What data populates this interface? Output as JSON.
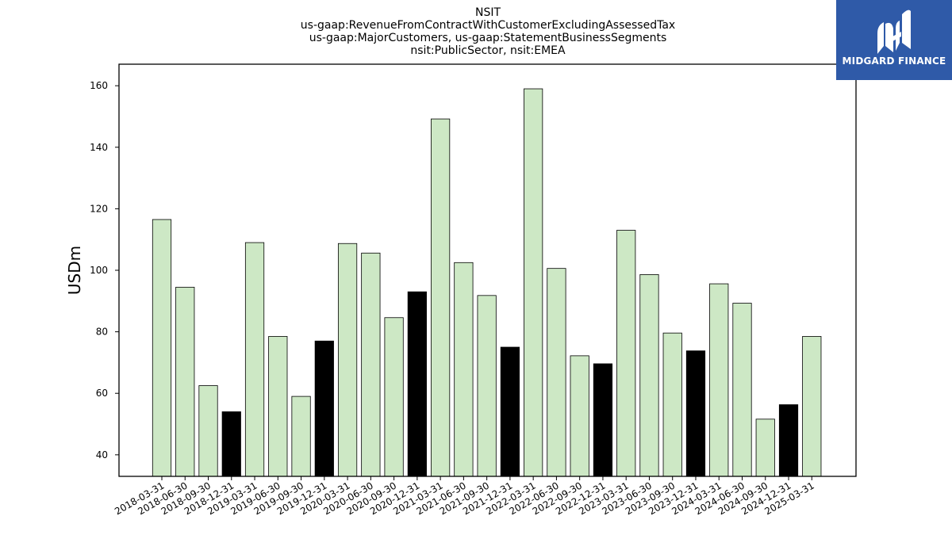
{
  "chart_data": {
    "type": "bar",
    "title_lines": [
      "NSIT",
      "us-gaap:RevenueFromContractWithCustomerExcludingAssessedTax",
      "us-gaap:MajorCustomers, us-gaap:StatementBusinessSegments",
      "nsit:PublicSector, nsit:EMEA"
    ],
    "xlabel": "",
    "ylabel": "USDm",
    "ylim": [
      33,
      167
    ],
    "yticks": [
      40,
      60,
      80,
      100,
      120,
      140,
      160
    ],
    "grid": false,
    "categories": [
      "2018-03-31",
      "2018-06-30",
      "2018-09-30",
      "2018-12-31",
      "2019-03-31",
      "2019-06-30",
      "2019-09-30",
      "2019-12-31",
      "2020-03-31",
      "2020-06-30",
      "2020-09-30",
      "2020-12-31",
      "2021-03-31",
      "2021-06-30",
      "2021-09-30",
      "2021-12-31",
      "2022-03-31",
      "2022-06-30",
      "2022-09-30",
      "2022-12-31",
      "2023-03-31",
      "2023-06-30",
      "2023-09-30",
      "2023-12-31",
      "2024-03-31",
      "2024-06-30",
      "2024-09-30",
      "2024-12-31",
      "2025-03-31"
    ],
    "values": [
      116.5,
      94.5,
      62.5,
      54.0,
      109.0,
      78.5,
      59.0,
      77.0,
      108.7,
      105.6,
      84.6,
      93.0,
      149.2,
      102.5,
      91.8,
      75.0,
      159.0,
      100.6,
      72.2,
      69.6,
      113.0,
      98.6,
      79.6,
      73.8,
      95.6,
      89.3,
      51.6,
      56.3,
      78.5
    ],
    "colors": {
      "quarter": "#cde8c5",
      "year_end": "#000000",
      "edge": "#000000"
    }
  },
  "logo": {
    "text": "MIDGARD FINANCE",
    "icon": "midgard-logo-icon"
  }
}
